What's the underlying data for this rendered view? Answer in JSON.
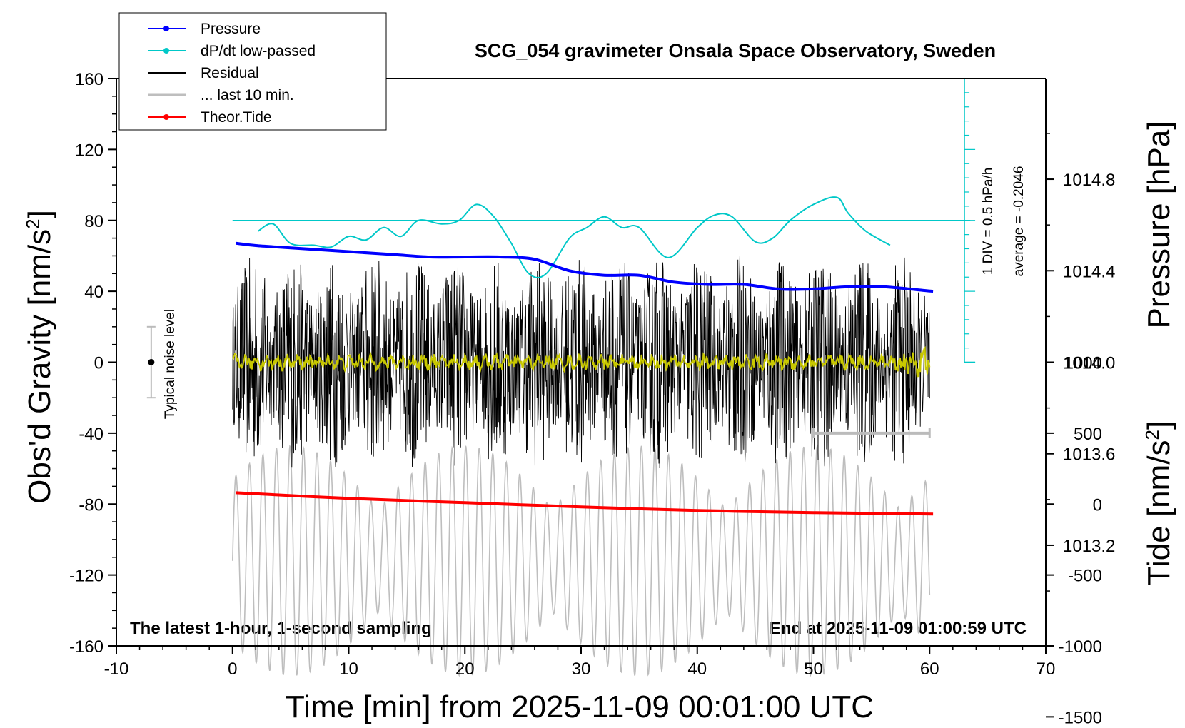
{
  "chart_data": {
    "type": "line",
    "title": "SCG_054 gravimeter Onsala Space Observatory, Sweden",
    "xlabel": "Time [min] from 2025-11-09 00:01:00 UTC",
    "ylabel_left": "Obs'd Gravity [nm/s",
    "ylabel_left_sup": "2",
    "ylabel_left_close": "]",
    "ylabel_right_pressure": "Pressure [hPa]",
    "ylabel_right_tide": "Tide [nm/s",
    "ylabel_right_tide_sup": "2",
    "ylabel_right_tide_close": "]",
    "xlim": [
      -10,
      70
    ],
    "ylim": [
      -160,
      160
    ],
    "pressure_lim": [
      1012.76,
      1015.24
    ],
    "tide_lim": [
      -1500,
      1500
    ],
    "x_ticks": [
      "-10",
      "0",
      "10",
      "20",
      "30",
      "40",
      "50",
      "60",
      "70"
    ],
    "y_ticks": [
      "160",
      "120",
      "80",
      "40",
      "0",
      "-40",
      "-80",
      "-120",
      "-160"
    ],
    "pressure_ticks": [
      "1014.8",
      "1014.4",
      "1014.0",
      "1013.6",
      "1013.2"
    ],
    "tide_ticks": [
      "1000",
      "500",
      "0",
      "-500",
      "-1000",
      "-1500"
    ],
    "annotation_left": "The latest 1-hour, 1-second sampling",
    "annotation_right": "End at 2025-11-09 01:00:59 UTC",
    "noise_label": "Typical noise level",
    "scale_bar_div": "1 DIV = 0.5 hPa/h",
    "scale_bar_avg": "average = -0.2046",
    "legend": [
      {
        "name": "Pressure",
        "color": "#0000ff",
        "marker": true
      },
      {
        "name": "dP/dt low-passed",
        "color": "#00c8c8",
        "marker": true
      },
      {
        "name": "Residual",
        "color": "#000000",
        "marker": false
      },
      {
        "name": "... last 10 min.",
        "color": "#bebebe",
        "marker": false
      },
      {
        "name": "Theor.Tide",
        "color": "#ff0000",
        "marker": true
      }
    ],
    "series": [
      {
        "name": "Pressure",
        "color": "#0000ff",
        "axis": "pressure",
        "x": [
          0.3,
          2,
          5,
          8,
          11,
          14,
          17,
          20,
          23,
          26,
          29,
          32,
          35,
          38,
          41,
          44,
          47,
          50,
          53,
          56,
          60.3
        ],
        "y": [
          1014.52,
          1014.51,
          1014.5,
          1014.49,
          1014.48,
          1014.47,
          1014.46,
          1014.46,
          1014.46,
          1014.45,
          1014.4,
          1014.38,
          1014.38,
          1014.35,
          1014.34,
          1014.34,
          1014.32,
          1014.32,
          1014.33,
          1014.33,
          1014.31
        ]
      },
      {
        "name": "dP/dt low-passed",
        "color": "#00c8c8",
        "axis": "dpdt",
        "center": 80,
        "div": 8,
        "x": [
          2.2,
          3.5,
          5,
          7,
          8.5,
          10,
          11.5,
          13,
          14.5,
          16,
          18,
          19.5,
          21,
          22.5,
          24,
          25.5,
          27,
          29,
          30.5,
          32,
          33.5,
          35,
          37.5,
          40,
          41.5,
          43,
          45,
          46.5,
          48,
          50,
          52,
          53,
          54.5,
          56.6
        ],
        "y": [
          74,
          78,
          67,
          66,
          65,
          71,
          69,
          76,
          71,
          80,
          78,
          80,
          89,
          82,
          67,
          50,
          50,
          70,
          76,
          82,
          76,
          76,
          59,
          76,
          83,
          82,
          68,
          70,
          80,
          89,
          93,
          84,
          74,
          66
        ]
      },
      {
        "name": "Residual",
        "color": "#000000",
        "x_range": [
          0,
          60
        ],
        "amplitude_approx": 60
      },
      {
        "name": "... last 10 min.",
        "color": "#c8c800",
        "x_range": [
          0,
          60
        ],
        "amplitude_approx": 5
      },
      {
        "name": "Theor.Tide",
        "color": "#ff0000",
        "axis": "tide",
        "x": [
          0.3,
          10,
          20,
          30,
          40,
          50,
          60.3
        ],
        "y": [
          80,
          40,
          10,
          -20,
          -45,
          -60,
          -70
        ]
      },
      {
        "name": "tide-gray",
        "color": "#bebebe",
        "axis": "tide",
        "x_range": [
          0,
          60
        ],
        "amplitude_approx": 900
      }
    ],
    "noise_bar": {
      "x": -7,
      "y_low": -20,
      "y_high": 20
    },
    "range_bar": {
      "x_start": 50,
      "x_end": 60,
      "tide": 500
    },
    "grid": false,
    "legend_position": "top-left"
  }
}
